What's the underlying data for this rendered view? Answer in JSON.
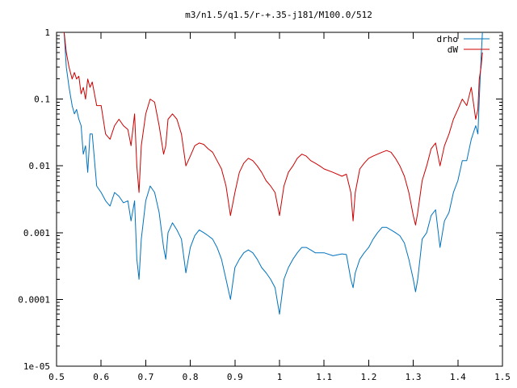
{
  "chart_data": {
    "type": "line",
    "title": "m3/n1.5/q1.5/r-+.35-j181/M100.0/512",
    "xlabel": "",
    "ylabel": "",
    "x_scale": "linear",
    "y_scale": "log",
    "xlim": [
      0.5,
      1.5
    ],
    "ylim": [
      1e-05,
      1
    ],
    "grid": false,
    "legend_position": "top-right",
    "x_ticks": [
      0.5,
      0.6,
      0.7,
      0.8,
      0.9,
      1,
      1.1,
      1.2,
      1.3,
      1.4,
      1.5
    ],
    "x_tick_labels": [
      "0.5",
      "0.6",
      "0.7",
      "0.8",
      "0.9",
      "1",
      "1.1",
      "1.2",
      "1.3",
      "1.4",
      "1.5"
    ],
    "y_ticks": [
      1e-05,
      0.0001,
      0.001,
      0.01,
      0.1,
      1
    ],
    "y_tick_labels": [
      "1e-05",
      "0.0001",
      "0.001",
      "0.01",
      "0.1",
      "1"
    ],
    "series": [
      {
        "name": "drho",
        "color": "#0072bd",
        "x": [
          0.517,
          0.522,
          0.528,
          0.535,
          0.54,
          0.545,
          0.55,
          0.555,
          0.56,
          0.565,
          0.57,
          0.575,
          0.58,
          0.59,
          0.6,
          0.61,
          0.62,
          0.63,
          0.64,
          0.65,
          0.66,
          0.667,
          0.675,
          0.68,
          0.685,
          0.69,
          0.7,
          0.71,
          0.72,
          0.73,
          0.74,
          0.745,
          0.75,
          0.76,
          0.77,
          0.78,
          0.79,
          0.8,
          0.81,
          0.82,
          0.83,
          0.84,
          0.85,
          0.86,
          0.87,
          0.88,
          0.89,
          0.9,
          0.91,
          0.92,
          0.93,
          0.94,
          0.95,
          0.96,
          0.97,
          0.98,
          0.99,
          1.0,
          1.01,
          1.02,
          1.03,
          1.04,
          1.05,
          1.06,
          1.07,
          1.08,
          1.09,
          1.1,
          1.12,
          1.14,
          1.15,
          1.16,
          1.165,
          1.17,
          1.18,
          1.19,
          1.2,
          1.21,
          1.22,
          1.23,
          1.24,
          1.25,
          1.26,
          1.27,
          1.28,
          1.29,
          1.3,
          1.305,
          1.31,
          1.32,
          1.33,
          1.34,
          1.35,
          1.36,
          1.37,
          1.38,
          1.39,
          1.4,
          1.41,
          1.42,
          1.43,
          1.44,
          1.445,
          1.448,
          1.452,
          1.455
        ],
        "y": [
          1.0,
          0.3,
          0.15,
          0.08,
          0.06,
          0.07,
          0.05,
          0.04,
          0.015,
          0.02,
          0.008,
          0.03,
          0.03,
          0.005,
          0.004,
          0.003,
          0.0025,
          0.004,
          0.0035,
          0.0028,
          0.003,
          0.0015,
          0.003,
          0.0004,
          0.0002,
          0.0008,
          0.003,
          0.005,
          0.004,
          0.002,
          0.0006,
          0.0004,
          0.001,
          0.0014,
          0.0011,
          0.0008,
          0.00025,
          0.0006,
          0.0009,
          0.0011,
          0.001,
          0.0009,
          0.0008,
          0.0006,
          0.0004,
          0.0002,
          0.0001,
          0.0003,
          0.0004,
          0.0005,
          0.00055,
          0.0005,
          0.0004,
          0.0003,
          0.00025,
          0.0002,
          0.00015,
          6e-05,
          0.0002,
          0.0003,
          0.0004,
          0.0005,
          0.0006,
          0.0006,
          0.00055,
          0.0005,
          0.0005,
          0.0005,
          0.00045,
          0.00048,
          0.00047,
          0.0002,
          0.00015,
          0.00025,
          0.0004,
          0.0005,
          0.0006,
          0.0008,
          0.001,
          0.0012,
          0.0012,
          0.0011,
          0.001,
          0.0009,
          0.0007,
          0.0004,
          0.0002,
          0.00013,
          0.0002,
          0.0008,
          0.001,
          0.0018,
          0.0022,
          0.0006,
          0.0015,
          0.002,
          0.004,
          0.006,
          0.012,
          0.012,
          0.025,
          0.04,
          0.03,
          0.1,
          0.4,
          1.0
        ]
      },
      {
        "name": "dW",
        "color": "#cc0000",
        "x": [
          0.517,
          0.522,
          0.528,
          0.535,
          0.54,
          0.545,
          0.55,
          0.555,
          0.56,
          0.565,
          0.57,
          0.575,
          0.58,
          0.59,
          0.6,
          0.61,
          0.62,
          0.63,
          0.64,
          0.65,
          0.66,
          0.667,
          0.675,
          0.68,
          0.685,
          0.69,
          0.7,
          0.71,
          0.72,
          0.73,
          0.74,
          0.745,
          0.75,
          0.76,
          0.77,
          0.78,
          0.79,
          0.8,
          0.81,
          0.82,
          0.83,
          0.84,
          0.85,
          0.86,
          0.87,
          0.88,
          0.89,
          0.9,
          0.91,
          0.92,
          0.93,
          0.94,
          0.95,
          0.96,
          0.97,
          0.98,
          0.99,
          1.0,
          1.01,
          1.02,
          1.03,
          1.04,
          1.05,
          1.06,
          1.07,
          1.08,
          1.09,
          1.1,
          1.12,
          1.14,
          1.15,
          1.16,
          1.165,
          1.17,
          1.18,
          1.19,
          1.2,
          1.21,
          1.22,
          1.23,
          1.24,
          1.25,
          1.26,
          1.27,
          1.28,
          1.29,
          1.3,
          1.305,
          1.31,
          1.32,
          1.33,
          1.34,
          1.35,
          1.36,
          1.37,
          1.38,
          1.39,
          1.4,
          1.41,
          1.42,
          1.43,
          1.44,
          1.445,
          1.448,
          1.452,
          1.455
        ],
        "y": [
          1.0,
          0.5,
          0.3,
          0.2,
          0.25,
          0.2,
          0.22,
          0.12,
          0.15,
          0.1,
          0.2,
          0.15,
          0.18,
          0.08,
          0.08,
          0.03,
          0.025,
          0.04,
          0.05,
          0.04,
          0.035,
          0.02,
          0.06,
          0.01,
          0.004,
          0.02,
          0.06,
          0.1,
          0.09,
          0.04,
          0.015,
          0.02,
          0.05,
          0.06,
          0.05,
          0.03,
          0.01,
          0.014,
          0.02,
          0.022,
          0.021,
          0.018,
          0.016,
          0.012,
          0.009,
          0.005,
          0.0018,
          0.004,
          0.008,
          0.011,
          0.013,
          0.012,
          0.01,
          0.008,
          0.006,
          0.005,
          0.004,
          0.0018,
          0.005,
          0.008,
          0.01,
          0.013,
          0.015,
          0.014,
          0.012,
          0.011,
          0.01,
          0.009,
          0.008,
          0.007,
          0.0075,
          0.004,
          0.0015,
          0.004,
          0.009,
          0.011,
          0.013,
          0.014,
          0.015,
          0.016,
          0.017,
          0.016,
          0.013,
          0.01,
          0.007,
          0.004,
          0.0018,
          0.0013,
          0.002,
          0.006,
          0.01,
          0.018,
          0.022,
          0.01,
          0.02,
          0.03,
          0.05,
          0.07,
          0.1,
          0.08,
          0.15,
          0.05,
          0.07,
          0.2,
          0.3,
          0.5
        ]
      }
    ]
  }
}
